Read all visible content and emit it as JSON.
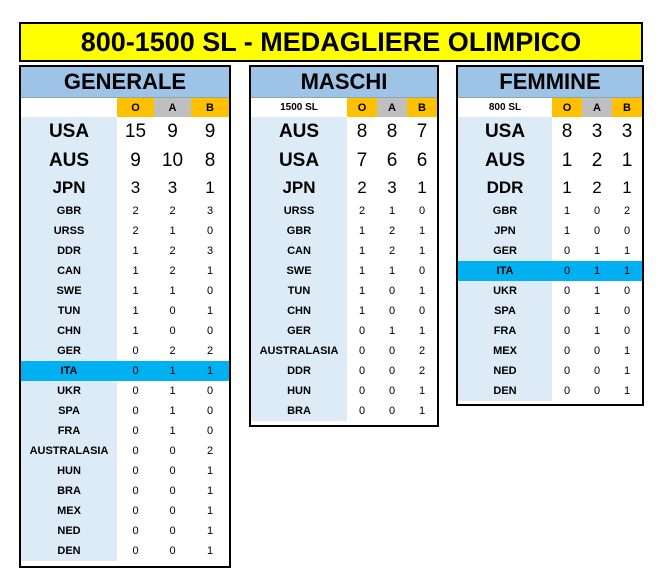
{
  "title": "800-1500 SL - MEDAGLIERE OLIMPICO",
  "headers": {
    "o": "O",
    "a": "A",
    "b": "B"
  },
  "generale": {
    "title": "GENERALE",
    "label": "",
    "rows": [
      [
        "USA",
        "15",
        "9",
        "9"
      ],
      [
        "AUS",
        "9",
        "10",
        "8"
      ],
      [
        "JPN",
        "3",
        "3",
        "1"
      ],
      [
        "GBR",
        "2",
        "2",
        "3"
      ],
      [
        "URSS",
        "2",
        "1",
        "0"
      ],
      [
        "DDR",
        "1",
        "2",
        "3"
      ],
      [
        "CAN",
        "1",
        "2",
        "1"
      ],
      [
        "SWE",
        "1",
        "1",
        "0"
      ],
      [
        "TUN",
        "1",
        "0",
        "1"
      ],
      [
        "CHN",
        "1",
        "0",
        "0"
      ],
      [
        "GER",
        "0",
        "2",
        "2"
      ],
      [
        "ITA",
        "0",
        "1",
        "1"
      ],
      [
        "UKR",
        "0",
        "1",
        "0"
      ],
      [
        "SPA",
        "0",
        "1",
        "0"
      ],
      [
        "FRA",
        "0",
        "1",
        "0"
      ],
      [
        "AUSTRALASIA",
        "0",
        "0",
        "2"
      ],
      [
        "HUN",
        "0",
        "0",
        "1"
      ],
      [
        "BRA",
        "0",
        "0",
        "1"
      ],
      [
        "MEX",
        "0",
        "0",
        "1"
      ],
      [
        "NED",
        "0",
        "0",
        "1"
      ],
      [
        "DEN",
        "0",
        "0",
        "1"
      ]
    ]
  },
  "maschi": {
    "title": "MASCHI",
    "label": "1500 SL",
    "rows": [
      [
        "AUS",
        "8",
        "8",
        "7"
      ],
      [
        "USA",
        "7",
        "6",
        "6"
      ],
      [
        "JPN",
        "2",
        "3",
        "1"
      ],
      [
        "URSS",
        "2",
        "1",
        "0"
      ],
      [
        "GBR",
        "1",
        "2",
        "1"
      ],
      [
        "CAN",
        "1",
        "2",
        "1"
      ],
      [
        "SWE",
        "1",
        "1",
        "0"
      ],
      [
        "TUN",
        "1",
        "0",
        "1"
      ],
      [
        "CHN",
        "1",
        "0",
        "0"
      ],
      [
        "GER",
        "0",
        "1",
        "1"
      ],
      [
        "AUSTRALASIA",
        "0",
        "0",
        "2"
      ],
      [
        "DDR",
        "0",
        "0",
        "2"
      ],
      [
        "HUN",
        "0",
        "0",
        "1"
      ],
      [
        "BRA",
        "0",
        "0",
        "1"
      ]
    ]
  },
  "femmine": {
    "title": "FEMMINE",
    "label": "800 SL",
    "rows": [
      [
        "USA",
        "8",
        "3",
        "3"
      ],
      [
        "AUS",
        "1",
        "2",
        "1"
      ],
      [
        "DDR",
        "1",
        "2",
        "1"
      ],
      [
        "GBR",
        "1",
        "0",
        "2"
      ],
      [
        "JPN",
        "1",
        "0",
        "0"
      ],
      [
        "GER",
        "0",
        "1",
        "1"
      ],
      [
        "ITA",
        "0",
        "1",
        "1"
      ],
      [
        "UKR",
        "0",
        "1",
        "0"
      ],
      [
        "SPA",
        "0",
        "1",
        "0"
      ],
      [
        "FRA",
        "0",
        "1",
        "0"
      ],
      [
        "MEX",
        "0",
        "0",
        "1"
      ],
      [
        "NED",
        "0",
        "0",
        "1"
      ],
      [
        "DEN",
        "0",
        "0",
        "1"
      ]
    ]
  },
  "highlight_nation": "ITA",
  "colors": {
    "title_bg": "#ffff00",
    "header_bg": "#9dc3e6",
    "nation_bg": "#ddebf7",
    "gold": "#ffc000",
    "silver": "#bfbfbf",
    "highlight": "#00b0f0"
  }
}
